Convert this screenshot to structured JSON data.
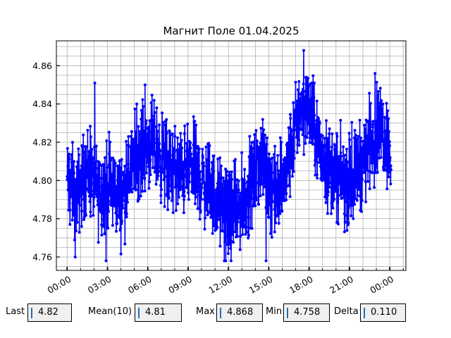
{
  "chart_data": {
    "type": "line",
    "title": "Магнит Поле 01.04.2025",
    "xlabel": "",
    "ylabel": "",
    "x_ticks": [
      "00:00",
      "03:00",
      "06:00",
      "09:00",
      "12:00",
      "15:00",
      "18:00",
      "21:00",
      "00:00"
    ],
    "y_ticks": [
      "4.76",
      "4.78",
      "4.80",
      "4.82",
      "4.84",
      "4.86"
    ],
    "xlim_hours": [
      -0.8,
      25.2
    ],
    "ylim": [
      4.753,
      4.873
    ],
    "grid": true,
    "series_color": "#0000ff",
    "trend": [
      {
        "t": 0.0,
        "v": 4.8
      },
      {
        "t": 0.7,
        "v": 4.792
      },
      {
        "t": 1.5,
        "v": 4.806
      },
      {
        "t": 2.3,
        "v": 4.794
      },
      {
        "t": 3.1,
        "v": 4.798
      },
      {
        "t": 4.0,
        "v": 4.79
      },
      {
        "t": 4.8,
        "v": 4.808
      },
      {
        "t": 5.5,
        "v": 4.816
      },
      {
        "t": 6.2,
        "v": 4.82
      },
      {
        "t": 7.0,
        "v": 4.812
      },
      {
        "t": 7.8,
        "v": 4.806
      },
      {
        "t": 8.6,
        "v": 4.804
      },
      {
        "t": 9.3,
        "v": 4.808
      },
      {
        "t": 10.0,
        "v": 4.8
      },
      {
        "t": 10.7,
        "v": 4.795
      },
      {
        "t": 11.4,
        "v": 4.788
      },
      {
        "t": 12.0,
        "v": 4.782
      },
      {
        "t": 12.6,
        "v": 4.784
      },
      {
        "t": 13.2,
        "v": 4.79
      },
      {
        "t": 13.8,
        "v": 4.8
      },
      {
        "t": 14.4,
        "v": 4.81
      },
      {
        "t": 15.0,
        "v": 4.802
      },
      {
        "t": 15.6,
        "v": 4.792
      },
      {
        "t": 16.2,
        "v": 4.8
      },
      {
        "t": 16.8,
        "v": 4.82
      },
      {
        "t": 17.3,
        "v": 4.838
      },
      {
        "t": 17.8,
        "v": 4.84
      },
      {
        "t": 18.4,
        "v": 4.826
      },
      {
        "t": 19.0,
        "v": 4.812
      },
      {
        "t": 19.6,
        "v": 4.806
      },
      {
        "t": 20.2,
        "v": 4.802
      },
      {
        "t": 20.8,
        "v": 4.798
      },
      {
        "t": 21.4,
        "v": 4.804
      },
      {
        "t": 22.0,
        "v": 4.81
      },
      {
        "t": 22.6,
        "v": 4.822
      },
      {
        "t": 23.2,
        "v": 4.828
      },
      {
        "t": 23.8,
        "v": 4.822
      },
      {
        "t": 24.1,
        "v": 4.81
      }
    ],
    "extremes": [
      {
        "t": 0.6,
        "v": 4.76
      },
      {
        "t": 2.9,
        "v": 4.758
      },
      {
        "t": 5.8,
        "v": 4.85
      },
      {
        "t": 11.8,
        "v": 4.758
      },
      {
        "t": 14.8,
        "v": 4.758
      },
      {
        "t": 17.6,
        "v": 4.868
      },
      {
        "t": 22.9,
        "v": 4.856
      }
    ]
  },
  "stats": {
    "last_label": "Last",
    "last_value": "4.82",
    "mean_label": "Mean(10)",
    "mean_value": "4.81",
    "max_label": "Max",
    "max_value": "4.868",
    "min_label": "Min",
    "min_value": "4.758",
    "delta_label": "Delta",
    "delta_value": "0.110"
  }
}
